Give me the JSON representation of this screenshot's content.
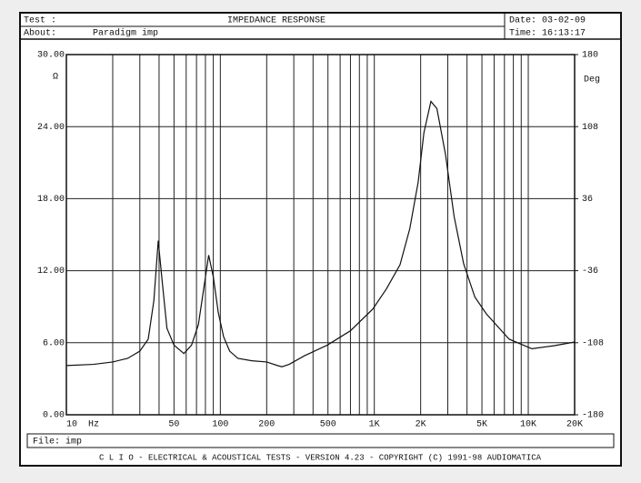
{
  "chart_data": {
    "type": "line",
    "title": "IMPEDANCE RESPONSE",
    "header": {
      "test": "Test :",
      "date": "Date: 03-02-09",
      "about": "About:",
      "about_value": "Paradigm imp",
      "time": "Time: 16:13:17"
    },
    "file": "File: imp",
    "footer": "C L I O  -  ELECTRICAL & ACOUSTICAL TESTS  -  VERSION 4.23  -  COPYRIGHT (C) 1991-98 AUDIOMATICA",
    "x_unit": "Hz",
    "y_unit": "Ω",
    "y2_unit": "Deg",
    "log_x": true,
    "xlim": [
      10,
      20000
    ],
    "xticks": [
      10,
      50,
      100,
      200,
      500,
      {
        "value": 1000,
        "label": "1K"
      },
      {
        "value": 2000,
        "label": "2K"
      },
      {
        "value": 5000,
        "label": "5K"
      },
      {
        "value": 10000,
        "label": "10K"
      },
      {
        "value": 20000,
        "label": "20K"
      }
    ],
    "xgrid": [
      20,
      30,
      40,
      60,
      70,
      80,
      90,
      300,
      400,
      600,
      700,
      800,
      900,
      3000,
      4000,
      6000,
      7000,
      8000,
      9000
    ],
    "ylim": [
      0,
      30
    ],
    "yticks": [
      {
        "value": 0,
        "label": "0.00"
      },
      {
        "value": 6,
        "label": "6.00"
      },
      {
        "value": 12,
        "label": "12.00"
      },
      {
        "value": 18,
        "label": "18.00"
      },
      {
        "value": 24,
        "label": "24.00"
      },
      {
        "value": 30,
        "label": "30.00"
      }
    ],
    "y2lim": [
      -180,
      180
    ],
    "y2ticks": [
      -180,
      -108,
      -36,
      36,
      108,
      180
    ],
    "grid": true,
    "color": "#111111",
    "x": [
      10,
      15,
      20,
      25,
      30,
      34,
      37,
      39.5,
      42,
      45,
      50,
      58,
      65,
      72,
      78,
      84,
      90,
      97,
      105,
      115,
      130,
      160,
      200,
      235,
      251,
      280,
      350,
      495,
      700,
      977,
      1200,
      1469,
      1700,
      1928,
      2100,
      2332,
      2550,
      2898,
      3300,
      3801,
      4500,
      5347,
      7510,
      10546,
      14800,
      20000
    ],
    "values": [
      4.1,
      4.2,
      4.4,
      4.7,
      5.3,
      6.3,
      9.5,
      14.5,
      11,
      7.2,
      5.8,
      5.1,
      5.8,
      7.5,
      10.5,
      13.3,
      11.5,
      8.5,
      6.5,
      5.3,
      4.7,
      4.5,
      4.4,
      4.1,
      4.0,
      4.2,
      4.9,
      5.8,
      7.0,
      8.8,
      10.5,
      12.5,
      15.5,
      19.4,
      23.5,
      26.1,
      25.5,
      21.7,
      16.5,
      12.6,
      9.8,
      8.4,
      6.3,
      5.5,
      5.76,
      6.06
    ]
  }
}
